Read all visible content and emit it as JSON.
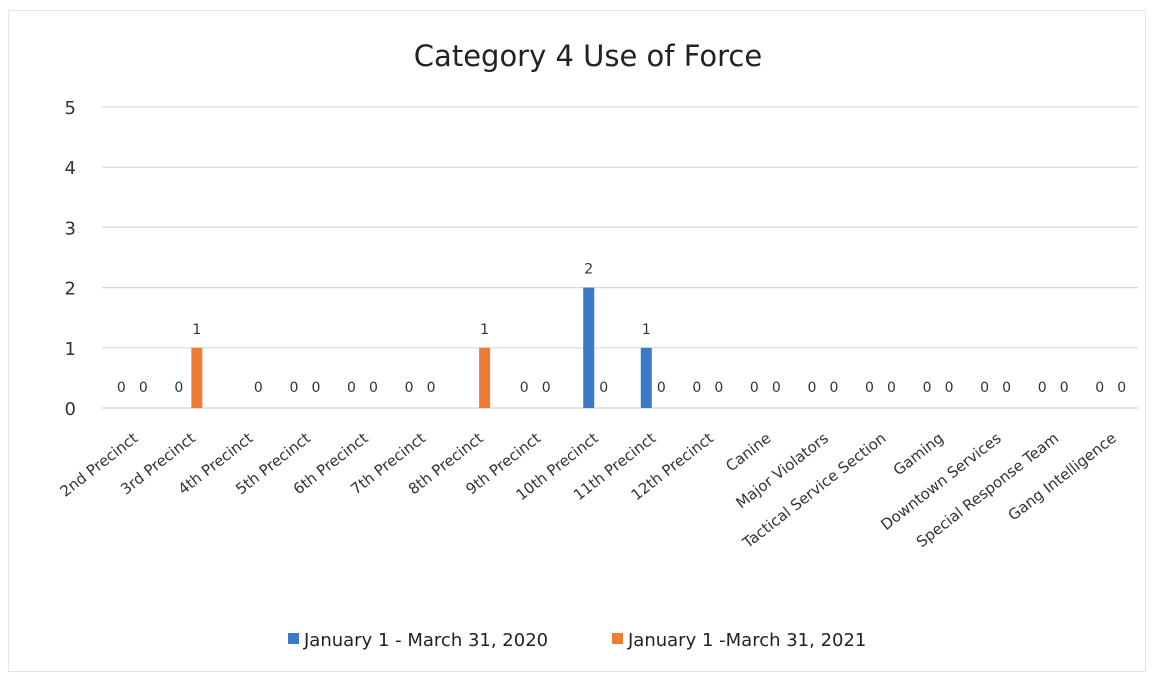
{
  "chart_data": {
    "type": "bar",
    "title": "Category 4 Use of Force",
    "xlabel": "",
    "ylabel": "",
    "ylim": [
      0,
      5
    ],
    "yticks": [
      "0",
      "1",
      "2",
      "3",
      "4",
      "5"
    ],
    "grid": true,
    "legend_position": "bottom",
    "categories": [
      "2nd Precinct",
      "3rd Precinct",
      "4th Precinct",
      "5th Precinct",
      "6th Precinct",
      "7th Precinct",
      "8th Precinct",
      "9th Precinct",
      "10th Precinct",
      "11th Precinct",
      "12th Precinct",
      "Canine",
      "Major Violators",
      "Tactical Service Section",
      "Gaming",
      "Downtown Services",
      "Special Response Team",
      "Gang Intelligence"
    ],
    "series": [
      {
        "name": "January 1 - March 31, 2020",
        "color": "#3a7ac9",
        "values": [
          0,
          0,
          null,
          0,
          0,
          0,
          null,
          0,
          2,
          1,
          0,
          0,
          0,
          0,
          0,
          0,
          0,
          0
        ],
        "labels": [
          "0",
          "0",
          "",
          "0",
          "0",
          "0",
          "",
          "0",
          "2",
          "1",
          "0",
          "0",
          "0",
          "0",
          "0",
          "0",
          "0",
          "0"
        ]
      },
      {
        "name": "January 1 -March 31, 2021",
        "color": "#f07b35",
        "values": [
          0,
          1,
          0,
          0,
          0,
          0,
          1,
          0,
          0,
          0,
          0,
          0,
          0,
          0,
          0,
          0,
          0,
          0
        ],
        "labels": [
          "0",
          "1",
          "0",
          "0",
          "0",
          "0",
          "1",
          "0",
          "0",
          "0",
          "0",
          "0",
          "0",
          "0",
          "0",
          "0",
          "0",
          "0"
        ]
      }
    ]
  }
}
